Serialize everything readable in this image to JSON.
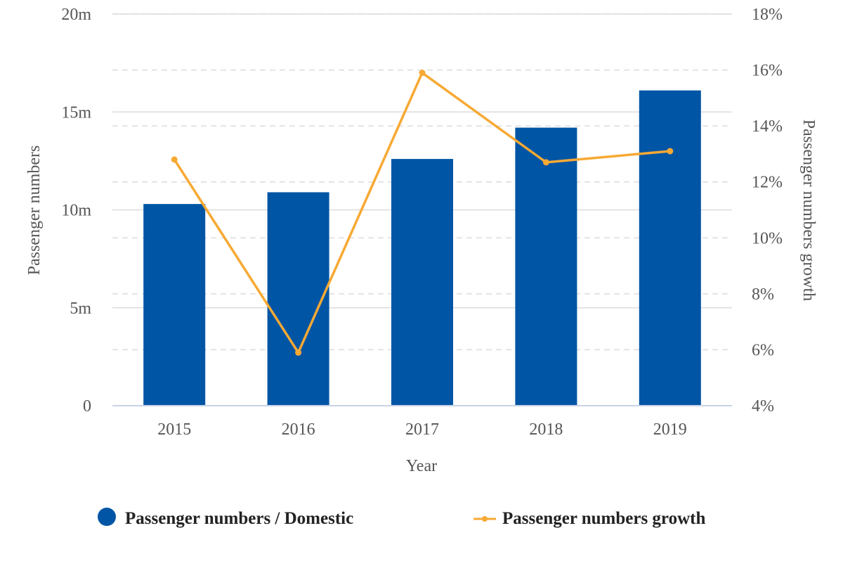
{
  "chart_data": {
    "type": "bar",
    "categories": [
      "2015",
      "2016",
      "2017",
      "2018",
      "2019"
    ],
    "series": [
      {
        "name": "Passenger numbers / Domestic",
        "type": "bar",
        "axis": "left",
        "color": "#0155a5",
        "values": [
          10.3,
          10.9,
          12.6,
          14.2,
          16.1
        ]
      },
      {
        "name": "Passenger numbers growth",
        "type": "line",
        "axis": "right",
        "color": "#f7a934",
        "values": [
          12.8,
          5.9,
          15.9,
          12.7,
          13.1
        ]
      }
    ],
    "xlabel": "Year",
    "ylabel": "Passenger numbers",
    "y2label": "Passenger numbers growth",
    "ylim": [
      0,
      20
    ],
    "y2lim": [
      4,
      18
    ],
    "yticks": [
      "0",
      "5m",
      "10m",
      "15m",
      "20m"
    ],
    "yticks_values": [
      0,
      5,
      10,
      15,
      20
    ],
    "y2ticks": [
      "4%",
      "6%",
      "8%",
      "10%",
      "12%",
      "14%",
      "16%",
      "18%"
    ],
    "y2ticks_values": [
      4,
      6,
      8,
      10,
      12,
      14,
      16,
      18
    ],
    "grid": true,
    "legend": "bottom"
  }
}
